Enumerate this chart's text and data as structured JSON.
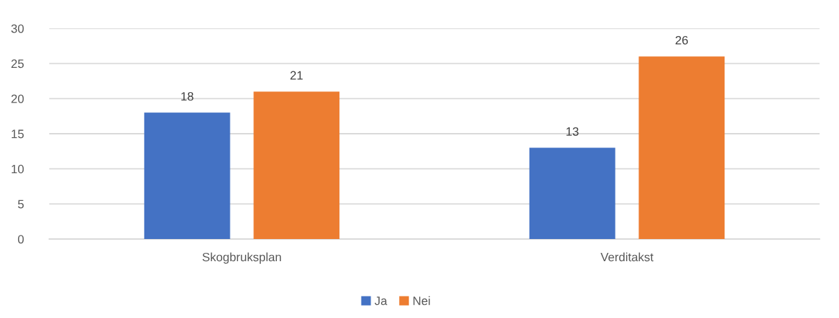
{
  "chart_data": {
    "type": "bar",
    "categories": [
      "Skogbruksplan",
      "Verditakst"
    ],
    "series": [
      {
        "name": "Ja",
        "color": "#4472c4",
        "values": [
          18,
          13
        ]
      },
      {
        "name": "Nei",
        "color": "#ed7d31",
        "values": [
          21,
          26
        ]
      }
    ],
    "ylim": [
      0,
      30
    ],
    "yticks": [
      0,
      5,
      10,
      15,
      20,
      25,
      30
    ],
    "grid": "y",
    "legend": "bottom",
    "data_labels": true
  }
}
